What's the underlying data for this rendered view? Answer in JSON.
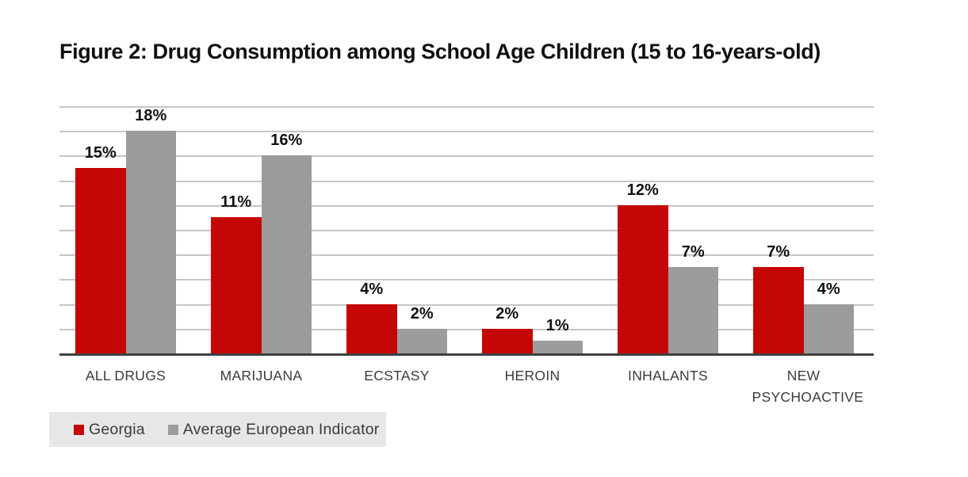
{
  "page": {
    "background": "#ffffff"
  },
  "chart_data": {
    "type": "bar",
    "title": "Figure 2: Drug Consumption among School Age Children (15 to 16-years-old)",
    "categories": [
      "ALL DRUGS",
      "MARIJUANA",
      "ECSTASY",
      "HEROIN",
      "INHALANTS",
      "NEW PSYCHOACTIVE"
    ],
    "series": [
      {
        "name": "Georgia",
        "color": "#c40606",
        "values": [
          15,
          11,
          4,
          2,
          12,
          7
        ]
      },
      {
        "name": "Average European Indicator",
        "color": "#9c9c9c",
        "values": [
          18,
          16,
          2,
          1,
          7,
          4
        ]
      }
    ],
    "value_suffix": "%",
    "ylim": [
      0,
      20
    ],
    "gridline_step": 2,
    "grid": true,
    "yaxis_tick_labels_visible": false,
    "legend_position": "bottom-left",
    "colors": {
      "axis_line": "#3f3f3f",
      "gridline": "#c6c6c6",
      "legend_background": "#e7e7e7",
      "category_label": "#3b3b3b",
      "legend_text": "#3b3b3b",
      "value_label": "#111111",
      "title": "#101010"
    }
  }
}
